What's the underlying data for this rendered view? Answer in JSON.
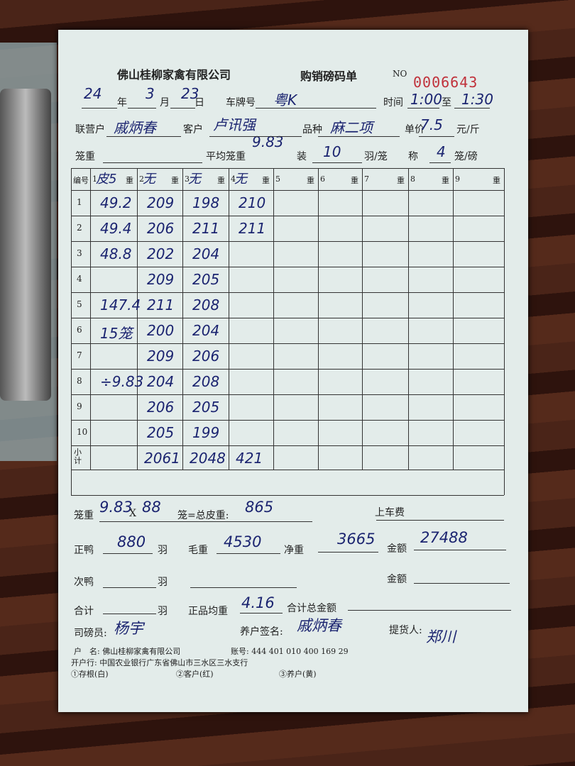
{
  "header": {
    "company": "佛山桂柳家禽有限公司",
    "title": "购销磅码单",
    "no_label": "NO",
    "number": "0006643"
  },
  "info": {
    "year": "24",
    "year_label": "年",
    "month": "3",
    "month_label": "月",
    "day": "23",
    "day_label": "日",
    "plate_label": "车牌号",
    "plate": "粤K",
    "time_label": "时间",
    "time_from": "1:00",
    "to_label": "至",
    "time_to": "1:30",
    "partner_label": "联营户",
    "partner": "戚炳春",
    "customer_label": "客户",
    "customer": "卢讯强",
    "variety_label": "品种",
    "variety": "麻二项",
    "price_label": "单价",
    "price": "7.5",
    "price_unit": "元/斤",
    "cage_label": "笼重",
    "avg_cage_label": "平均笼重",
    "avg_cage": "9.83",
    "load_label": "装",
    "load": "10",
    "load_unit": "羽/笼",
    "scale_label": "称",
    "scale": "4",
    "scale_unit": "笼/磅"
  },
  "table": {
    "header": [
      "编号",
      "1",
      "2",
      "3",
      "4",
      "5",
      "6",
      "7",
      "8",
      "9"
    ],
    "weight_label": "重",
    "header_notes": [
      "皮5",
      "无",
      "无",
      "无"
    ],
    "rows": [
      {
        "no": "1",
        "cells": [
          "49.2",
          "209",
          "198",
          "210"
        ]
      },
      {
        "no": "2",
        "cells": [
          "49.4",
          "206",
          "211",
          "211"
        ]
      },
      {
        "no": "3",
        "cells": [
          "48.8",
          "202",
          "204",
          null
        ]
      },
      {
        "no": "4",
        "cells": [
          null,
          "209",
          "205",
          null
        ]
      },
      {
        "no": "5",
        "cells": [
          "147.4",
          "211",
          "208",
          null
        ]
      },
      {
        "no": "6",
        "cells": [
          "15笼",
          "200",
          "204",
          null
        ]
      },
      {
        "no": "7",
        "cells": [
          null,
          "209",
          "206",
          null
        ]
      },
      {
        "no": "8",
        "cells": [
          "÷9.83",
          "204",
          "208",
          null
        ]
      },
      {
        "no": "9",
        "cells": [
          null,
          "206",
          "205",
          null
        ]
      },
      {
        "no": "10",
        "cells": [
          null,
          "205",
          "199",
          null
        ]
      }
    ],
    "subtotal": {
      "label": "小计",
      "cells": [
        null,
        "2061",
        "2048",
        "421"
      ]
    }
  },
  "summary": {
    "cage_label": "笼重",
    "cage_weight": "9.83",
    "times": "X",
    "cages": "88",
    "total_tare_label": "笼=总皮重:",
    "total_tare": "865",
    "loading_fee_label": "上车费",
    "good_label": "正鸭",
    "good_count": "880",
    "bird_unit": "羽",
    "gross_label": "毛重",
    "gross": "4530",
    "net_label": "净重",
    "net": "3665",
    "amount_label": "金额",
    "amount": "27488",
    "second_label": "次鸭",
    "second_amount_label": "金额",
    "total_label": "合计",
    "avg_label": "正品均重",
    "avg": "4.16",
    "total_amount_label": "合计总金额",
    "weigher_label": "司磅员:",
    "weigher": "杨宇",
    "farmer_label": "养户签名:",
    "farmer": "戚炳春",
    "pickup_label": "提货人:",
    "pickup": "郑川"
  },
  "footer": {
    "account_name": "户　名: 佛山桂柳家禽有限公司",
    "account_no": "账号: 444 401 010 400 169 29",
    "bank": "开户行: 中国农业银行广东省佛山市三水区三水支行",
    "copy1": "①存根(白)",
    "copy2": "②客户(红)",
    "copy3": "③养户(黄)"
  }
}
